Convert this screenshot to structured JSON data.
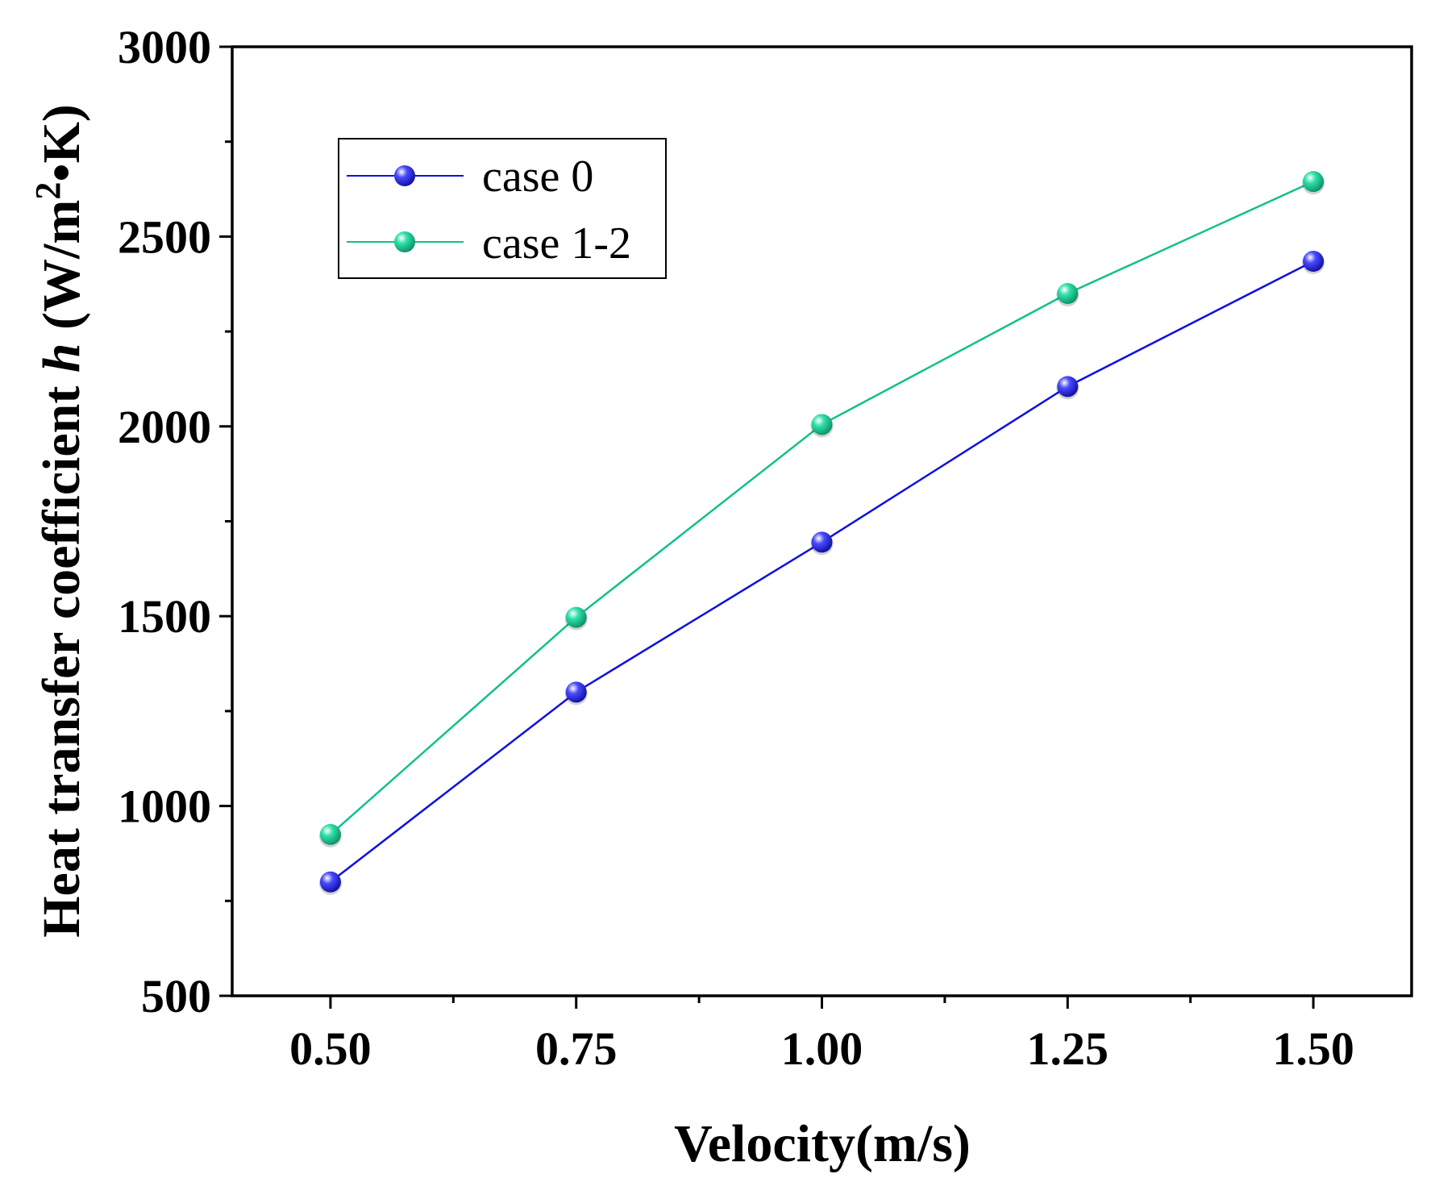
{
  "chart_data": {
    "type": "line",
    "title": "",
    "xlabel": "Velocity(m/s)",
    "ylabel": {
      "prefix": "Heat transfer coefficient ",
      "variable": "h",
      "unit_open": " (W/m",
      "unit_sup": "2",
      "unit_close": "•K)"
    },
    "x": [
      0.5,
      0.75,
      1.0,
      1.25,
      1.5
    ],
    "x_tick_labels": [
      "0.50",
      "0.75",
      "1.00",
      "1.25",
      "1.50"
    ],
    "y_ticks": [
      500,
      1000,
      1500,
      2000,
      2500,
      3000
    ],
    "y_tick_labels": [
      "500",
      "1000",
      "1500",
      "2000",
      "2500",
      "3000"
    ],
    "xlim": [
      0.4,
      1.6
    ],
    "ylim": [
      500,
      3000
    ],
    "grid": false,
    "legend_position": "top-left",
    "series": [
      {
        "name": "case 0",
        "color": "#1010e0",
        "values": [
          800,
          1300,
          1695,
          2105,
          2435
        ]
      },
      {
        "name": "case 1-2",
        "color": "#12c08a",
        "values": [
          925,
          1497,
          2005,
          2350,
          2645
        ]
      }
    ]
  }
}
